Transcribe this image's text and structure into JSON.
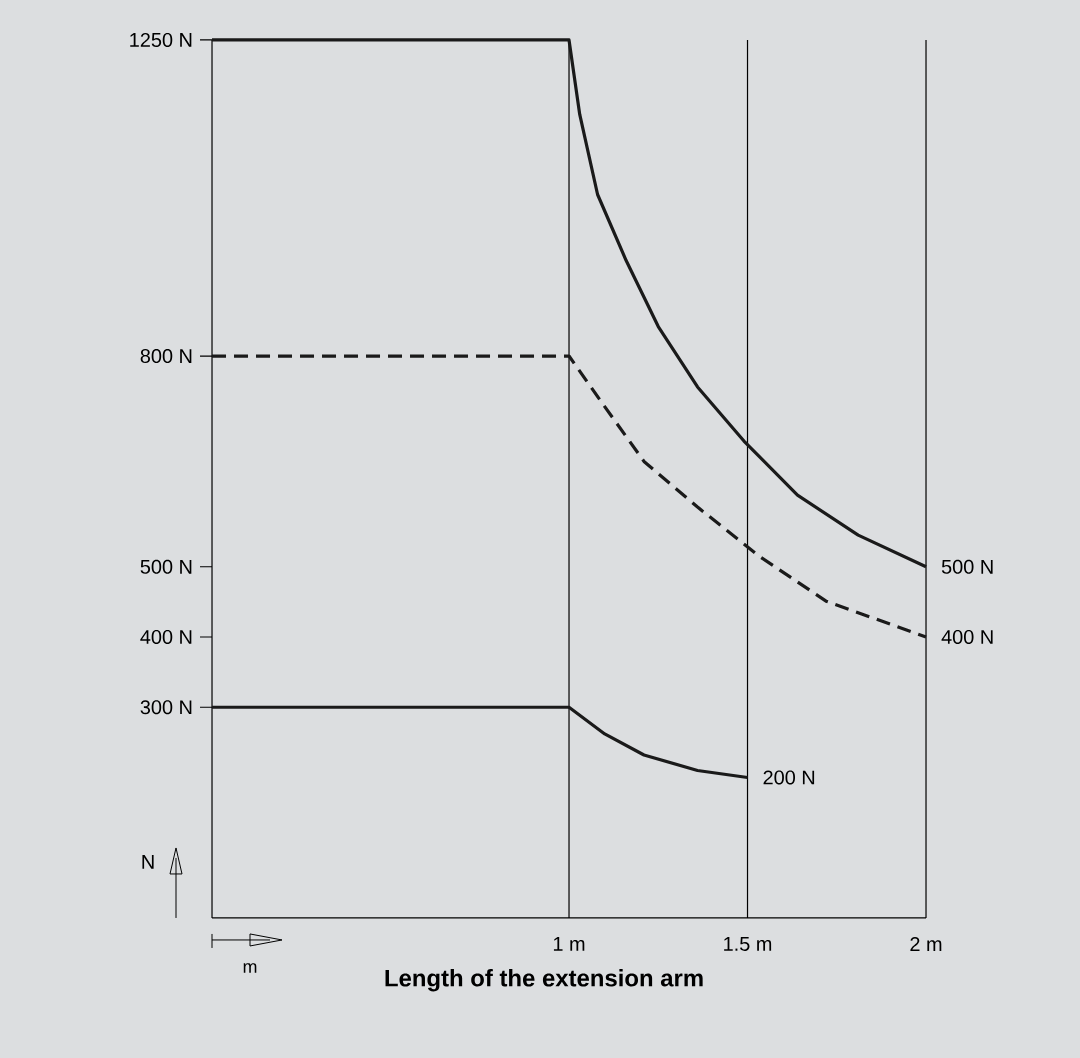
{
  "chart_data": {
    "type": "line",
    "xlabel": "Length of the extension arm",
    "ylabel": "N",
    "annotations": [
      "m"
    ],
    "xlim": [
      0,
      2
    ],
    "ylim": [
      0,
      1250
    ],
    "xticks": [
      {
        "value": 1,
        "label": "1 m"
      },
      {
        "value": 1.5,
        "label": "1.5 m"
      },
      {
        "value": 2,
        "label": "2 m"
      }
    ],
    "yticks": [
      {
        "value": 300,
        "label": "300 N"
      },
      {
        "value": 400,
        "label": "400 N"
      },
      {
        "value": 500,
        "label": "500 N"
      },
      {
        "value": 800,
        "label": "800 N"
      },
      {
        "value": 1250,
        "label": "1250 N"
      }
    ],
    "grid": "x",
    "marker": "none",
    "series": [
      {
        "color": "#1a1a1a",
        "line_style": "solid",
        "x": [
          0,
          1,
          1.03,
          1.08,
          1.16,
          1.25,
          1.36,
          1.49,
          1.64,
          1.81,
          2
        ],
        "values": [
          1250,
          1250,
          1144,
          1030,
          936,
          842,
          756,
          679,
          602,
          545,
          500
        ],
        "value_labels": [
          null,
          null,
          null,
          null,
          null,
          null,
          null,
          null,
          null,
          null,
          "500 N"
        ]
      },
      {
        "color": "#1a1a1a",
        "line_style": "dashed",
        "x": [
          0,
          1,
          1.1,
          1.21,
          1.36,
          1.53,
          1.72,
          2
        ],
        "values": [
          800,
          800,
          728,
          650,
          585,
          516,
          451,
          400
        ],
        "value_labels": [
          null,
          null,
          null,
          null,
          null,
          null,
          null,
          "400 N"
        ]
      },
      {
        "color": "#1a1a1a",
        "line_style": "solid",
        "x": [
          0,
          1,
          1.1,
          1.21,
          1.36,
          1.5
        ],
        "values": [
          300,
          300,
          262,
          232,
          210,
          200
        ],
        "value_labels": [
          null,
          null,
          null,
          null,
          null,
          "200 N"
        ]
      }
    ]
  }
}
